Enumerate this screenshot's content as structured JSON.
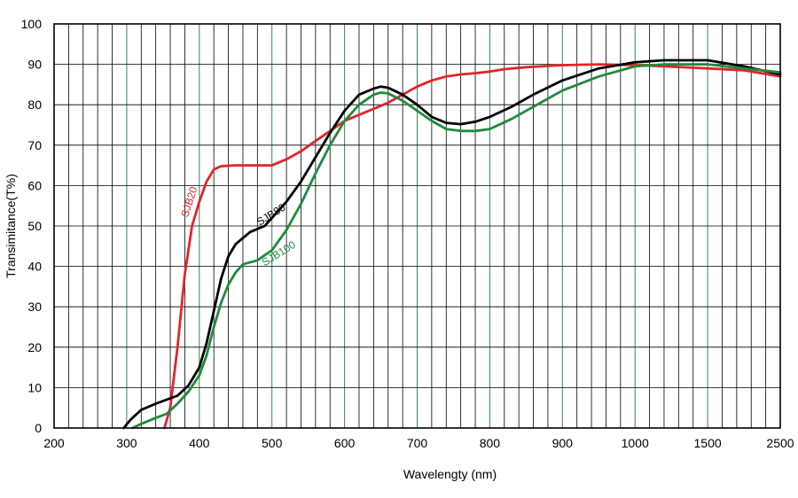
{
  "chart_data": {
    "type": "line",
    "title": "",
    "xlabel": "Wavelengty (nm)",
    "ylabel": "Transimitance(T%)",
    "ylim": [
      0,
      100
    ],
    "grid": true,
    "legend": "inline labels on curves",
    "x_scale_note": "piecewise: 200-1000 linear, 1000-2500 compressed",
    "x_ticks": [
      200,
      300,
      400,
      500,
      600,
      700,
      800,
      900,
      1000,
      1500,
      2500
    ],
    "x_tick_labels": [
      "200",
      "300",
      "400",
      "500",
      "600",
      "700",
      "800",
      "900",
      "1000",
      "1500",
      "2500"
    ],
    "y_ticks": [
      0,
      10,
      20,
      30,
      40,
      50,
      60,
      70,
      80,
      90,
      100
    ],
    "y_tick_labels": [
      "0",
      "10",
      "20",
      "30",
      "40",
      "50",
      "60",
      "70",
      "80",
      "90",
      "100"
    ],
    "series": [
      {
        "name": "SJB20",
        "color": "#e0252b",
        "points": [
          [
            352,
            0
          ],
          [
            360,
            5
          ],
          [
            370,
            20
          ],
          [
            380,
            38
          ],
          [
            390,
            50
          ],
          [
            400,
            56
          ],
          [
            410,
            61
          ],
          [
            420,
            64
          ],
          [
            430,
            64.8
          ],
          [
            450,
            65
          ],
          [
            480,
            65
          ],
          [
            500,
            65
          ],
          [
            520,
            66.5
          ],
          [
            540,
            68.5
          ],
          [
            560,
            71
          ],
          [
            580,
            73.5
          ],
          [
            600,
            76
          ],
          [
            620,
            77.5
          ],
          [
            640,
            79
          ],
          [
            660,
            80.5
          ],
          [
            680,
            82.5
          ],
          [
            700,
            84.5
          ],
          [
            720,
            86
          ],
          [
            740,
            87
          ],
          [
            760,
            87.5
          ],
          [
            780,
            87.8
          ],
          [
            800,
            88.2
          ],
          [
            820,
            88.8
          ],
          [
            850,
            89.3
          ],
          [
            900,
            89.8
          ],
          [
            950,
            90
          ],
          [
            1000,
            89.8
          ],
          [
            1200,
            89.5
          ],
          [
            1500,
            89
          ],
          [
            2000,
            88.5
          ],
          [
            2500,
            87
          ]
        ]
      },
      {
        "name": "SJB80",
        "color": "#000000",
        "points": [
          [
            296,
            0
          ],
          [
            305,
            2
          ],
          [
            320,
            4.5
          ],
          [
            340,
            6
          ],
          [
            355,
            7
          ],
          [
            370,
            8
          ],
          [
            385,
            10.5
          ],
          [
            400,
            15
          ],
          [
            410,
            21
          ],
          [
            420,
            29
          ],
          [
            430,
            37
          ],
          [
            440,
            42.5
          ],
          [
            450,
            45.5
          ],
          [
            470,
            48.5
          ],
          [
            490,
            50
          ],
          [
            500,
            52
          ],
          [
            520,
            56
          ],
          [
            540,
            61
          ],
          [
            560,
            67
          ],
          [
            580,
            73
          ],
          [
            600,
            78.5
          ],
          [
            620,
            82.5
          ],
          [
            640,
            84
          ],
          [
            650,
            84.5
          ],
          [
            660,
            84.2
          ],
          [
            680,
            82.5
          ],
          [
            700,
            80
          ],
          [
            720,
            77
          ],
          [
            740,
            75.5
          ],
          [
            760,
            75.2
          ],
          [
            780,
            75.8
          ],
          [
            800,
            77
          ],
          [
            830,
            79.5
          ],
          [
            860,
            82.5
          ],
          [
            900,
            86
          ],
          [
            950,
            89
          ],
          [
            1000,
            90.5
          ],
          [
            1200,
            91
          ],
          [
            1500,
            91
          ],
          [
            2000,
            89.5
          ],
          [
            2500,
            87.5
          ]
        ]
      },
      {
        "name": "SJB100",
        "color": "#1f8a3c",
        "points": [
          [
            308,
            0
          ],
          [
            320,
            1
          ],
          [
            340,
            2.5
          ],
          [
            355,
            3.5
          ],
          [
            370,
            6
          ],
          [
            385,
            9
          ],
          [
            400,
            13
          ],
          [
            410,
            18
          ],
          [
            420,
            25
          ],
          [
            430,
            31
          ],
          [
            440,
            35.5
          ],
          [
            450,
            38.5
          ],
          [
            460,
            40.5
          ],
          [
            480,
            41.5
          ],
          [
            500,
            44
          ],
          [
            520,
            49
          ],
          [
            540,
            55.5
          ],
          [
            560,
            63
          ],
          [
            580,
            70
          ],
          [
            600,
            76
          ],
          [
            620,
            80
          ],
          [
            640,
            82.5
          ],
          [
            650,
            83
          ],
          [
            660,
            82.8
          ],
          [
            680,
            81
          ],
          [
            700,
            78.5
          ],
          [
            720,
            76
          ],
          [
            740,
            74
          ],
          [
            760,
            73.5
          ],
          [
            780,
            73.5
          ],
          [
            800,
            74
          ],
          [
            830,
            76.5
          ],
          [
            860,
            79.5
          ],
          [
            900,
            83.5
          ],
          [
            950,
            87
          ],
          [
            1000,
            89.5
          ],
          [
            1200,
            90
          ],
          [
            1500,
            90
          ],
          [
            2000,
            89
          ],
          [
            2500,
            88
          ]
        ]
      }
    ],
    "annotations": [
      {
        "text": "SJB20",
        "color": "#e0252b",
        "at": [
          384,
          52
        ],
        "rotate": -72
      },
      {
        "text": "SJB80",
        "color": "#000000",
        "at": [
          483,
          50
        ],
        "rotate": -32
      },
      {
        "text": "SJB100",
        "color": "#1f8a3c",
        "at": [
          490,
          40
        ],
        "rotate": -32
      }
    ]
  }
}
